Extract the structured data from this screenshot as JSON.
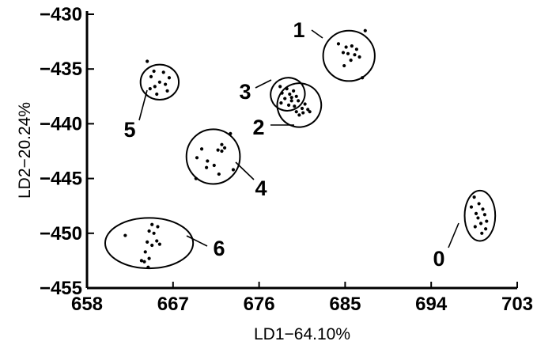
{
  "chart_data": {
    "type": "scatter",
    "title": "",
    "xlabel": "LD1−64.10%",
    "ylabel": "LD2−20.24%",
    "xlim": [
      658,
      703
    ],
    "ylim": [
      -455,
      -430
    ],
    "xticks": [
      658,
      667,
      676,
      685,
      694,
      703
    ],
    "yticks": [
      -430,
      -435,
      -440,
      -445,
      -450,
      -455
    ],
    "xtick_labels": [
      "658",
      "667",
      "676",
      "685",
      "694",
      "703"
    ],
    "ytick_labels": [
      "−430",
      "−435",
      "−440",
      "−445",
      "−450",
      "−455"
    ],
    "grid": false,
    "groups": [
      {
        "label": "0",
        "center": [
          699.1,
          -448.4
        ],
        "radius": [
          1.6,
          2.3
        ],
        "points": [
          [
            698.5,
            -446.7
          ],
          [
            699.0,
            -447.3
          ],
          [
            698.2,
            -447.6
          ],
          [
            699.4,
            -447.8
          ],
          [
            698.7,
            -448.2
          ],
          [
            699.6,
            -448.3
          ],
          [
            698.9,
            -448.6
          ],
          [
            699.8,
            -448.9
          ],
          [
            699.2,
            -449.1
          ],
          [
            698.6,
            -449.4
          ],
          [
            699.7,
            -449.6
          ],
          [
            699.3,
            -450.0
          ]
        ]
      },
      {
        "label": "1",
        "center": [
          685.4,
          -433.8
        ],
        "radius": [
          2.7,
          2.3
        ],
        "points": [
          [
            687.1,
            -431.5
          ],
          [
            684.3,
            -432.7
          ],
          [
            685.1,
            -433.0
          ],
          [
            685.7,
            -432.9
          ],
          [
            686.2,
            -433.2
          ],
          [
            684.8,
            -433.5
          ],
          [
            685.3,
            -433.6
          ],
          [
            686.0,
            -433.7
          ],
          [
            686.5,
            -433.9
          ],
          [
            685.6,
            -434.2
          ],
          [
            684.9,
            -434.7
          ],
          [
            686.8,
            -435.8
          ]
        ]
      },
      {
        "label": "2",
        "center": [
          680.2,
          -438.3
        ],
        "radius": [
          2.3,
          2.0
        ],
        "points": [
          [
            679.4,
            -437.6
          ],
          [
            680.1,
            -437.9
          ],
          [
            680.8,
            -438.2
          ],
          [
            679.7,
            -438.4
          ],
          [
            680.5,
            -438.6
          ],
          [
            681.1,
            -438.7
          ],
          [
            679.9,
            -438.9
          ],
          [
            680.6,
            -439.0
          ],
          [
            681.3,
            -438.9
          ],
          [
            680.2,
            -439.2
          ]
        ]
      },
      {
        "label": "3",
        "center": [
          679.0,
          -437.3
        ],
        "radius": [
          1.8,
          1.5
        ],
        "points": [
          [
            678.2,
            -436.6
          ],
          [
            678.9,
            -436.8
          ],
          [
            679.6,
            -437.0
          ],
          [
            678.4,
            -437.2
          ],
          [
            679.2,
            -437.3
          ],
          [
            679.9,
            -437.5
          ],
          [
            678.7,
            -437.7
          ],
          [
            679.4,
            -437.9
          ],
          [
            678.3,
            -438.1
          ],
          [
            679.1,
            -438.3
          ]
        ]
      },
      {
        "label": "4",
        "center": [
          671.2,
          -443.0
        ],
        "radius": [
          2.8,
          2.5
        ],
        "points": [
          [
            673.0,
            -440.9
          ],
          [
            672.1,
            -441.9
          ],
          [
            672.4,
            -442.2
          ],
          [
            670.0,
            -442.3
          ],
          [
            671.7,
            -442.4
          ],
          [
            672.1,
            -442.5
          ],
          [
            669.5,
            -443.1
          ],
          [
            670.6,
            -443.4
          ],
          [
            671.3,
            -443.8
          ],
          [
            670.5,
            -444.0
          ],
          [
            673.3,
            -444.2
          ],
          [
            671.8,
            -444.6
          ],
          [
            669.4,
            -445.0
          ]
        ]
      },
      {
        "label": "5",
        "center": [
          665.6,
          -436.2
        ],
        "radius": [
          2.0,
          1.6
        ],
        "points": [
          [
            664.3,
            -434.3
          ],
          [
            665.0,
            -435.2
          ],
          [
            666.0,
            -435.3
          ],
          [
            664.7,
            -435.7
          ],
          [
            666.6,
            -435.8
          ],
          [
            665.6,
            -436.2
          ],
          [
            666.2,
            -436.4
          ],
          [
            665.1,
            -436.6
          ],
          [
            664.6,
            -436.8
          ],
          [
            666.4,
            -437.0
          ],
          [
            665.3,
            -437.3
          ]
        ]
      },
      {
        "label": "6",
        "center": [
          664.5,
          -450.9
        ],
        "radius": [
          4.6,
          2.3
        ],
        "points": [
          [
            664.8,
            -449.2
          ],
          [
            665.4,
            -449.4
          ],
          [
            664.5,
            -449.8
          ],
          [
            665.0,
            -450.0
          ],
          [
            662.0,
            -450.2
          ],
          [
            664.3,
            -450.8
          ],
          [
            665.3,
            -450.7
          ],
          [
            664.8,
            -451.1
          ],
          [
            665.6,
            -451.0
          ],
          [
            664.1,
            -451.7
          ],
          [
            664.5,
            -452.3
          ],
          [
            663.7,
            -452.5
          ],
          [
            664.0,
            -452.6
          ],
          [
            664.4,
            -453.1
          ]
        ]
      }
    ]
  }
}
